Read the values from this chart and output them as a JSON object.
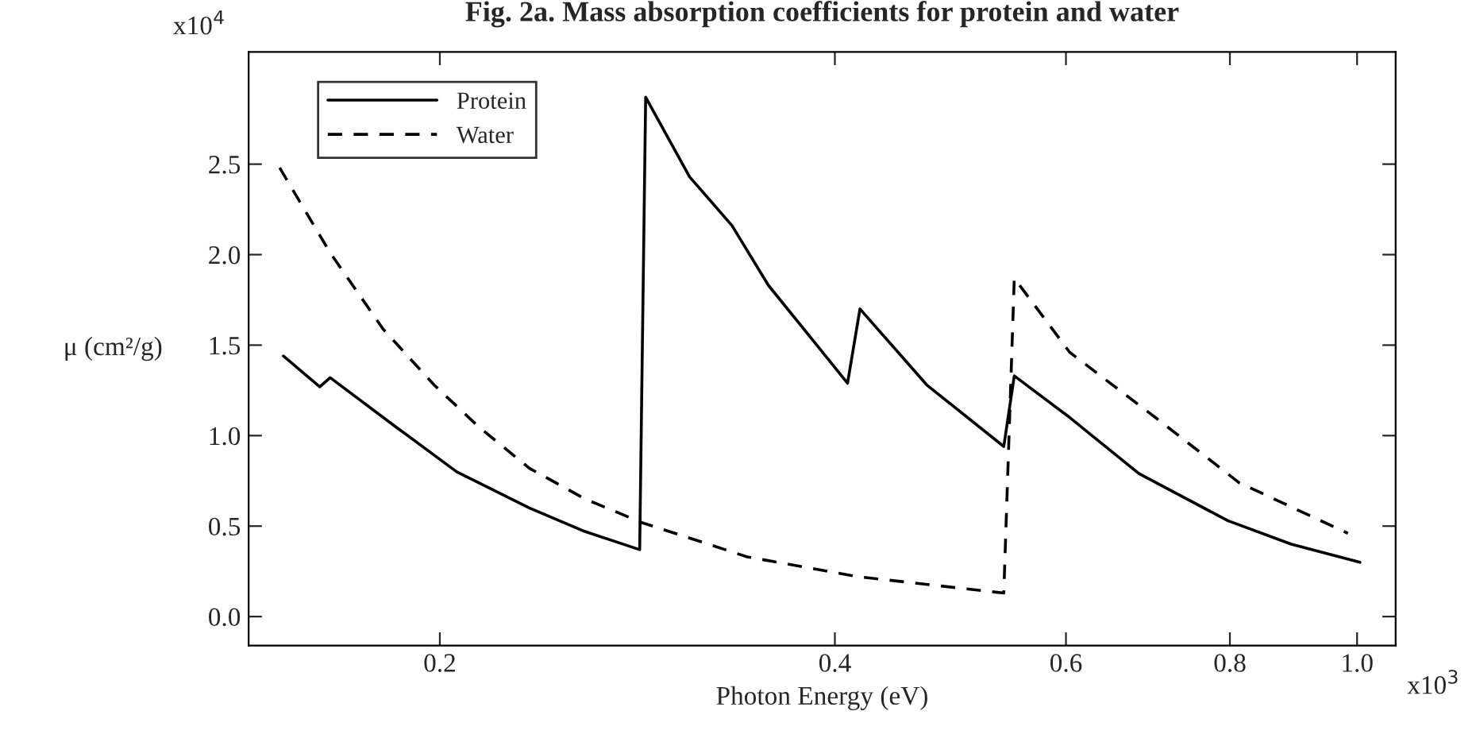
{
  "chart_data": {
    "type": "line",
    "title": "Fig. 2a. Mass absorption coefficients for protein and water",
    "xlabel": "Photon Energy (eV)",
    "ylabel": "μ (cm²/g)",
    "annotations": [
      "x10$^{4}$",
      "x10$^{3}$"
    ],
    "log": "x",
    "xlim": [
      0.143,
      1.07
    ],
    "xticks": [
      0.2,
      0.4,
      0.6,
      0.8,
      {
        "value": 1.0,
        "label": "1.0"
      }
    ],
    "ylim": [
      -0.16,
      3.12
    ],
    "yticks": [
      {
        "value": 0,
        "label": "0.0"
      },
      0.5,
      {
        "value": 1,
        "label": "1.0"
      },
      1.5,
      {
        "value": 2,
        "label": "2.0"
      },
      2.5
    ],
    "legend": "top left",
    "series": [
      {
        "name": "Protein",
        "color": "#000000",
        "line_style": "solid",
        "x": [
          0.152,
          0.162,
          0.165,
          0.185,
          0.206,
          0.234,
          0.258,
          0.284,
          0.287,
          0.31,
          0.334,
          0.356,
          0.409,
          0.418,
          0.47,
          0.538,
          0.548,
          0.604,
          0.682,
          0.797,
          0.891,
          1.005
        ],
        "values": [
          1.44,
          1.27,
          1.32,
          1.05,
          0.8,
          0.6,
          0.47,
          0.37,
          2.87,
          2.43,
          2.16,
          1.83,
          1.29,
          1.7,
          1.28,
          0.94,
          1.33,
          1.1,
          0.79,
          0.53,
          0.4,
          0.3
        ]
      },
      {
        "name": "Water",
        "color": "#000000",
        "line_style": "dashed",
        "x": [
          0.151,
          0.165,
          0.181,
          0.198,
          0.214,
          0.234,
          0.258,
          0.285,
          0.343,
          0.417,
          0.538,
          0.548,
          0.604,
          0.702,
          0.813,
          0.984
        ],
        "values": [
          2.48,
          2.01,
          1.59,
          1.28,
          1.05,
          0.82,
          0.65,
          0.52,
          0.33,
          0.22,
          0.13,
          1.87,
          1.46,
          1.1,
          0.74,
          0.46
        ]
      }
    ]
  }
}
